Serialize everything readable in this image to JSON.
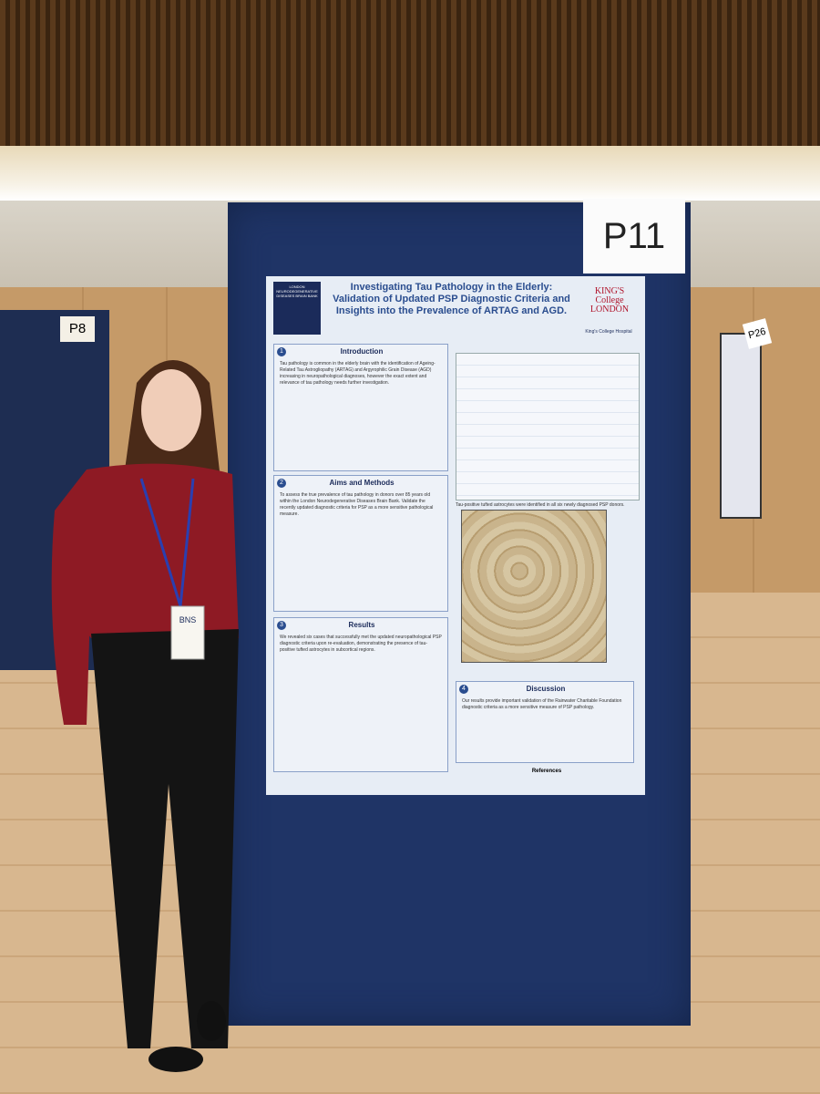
{
  "signs": {
    "board": "P11",
    "left_board": "P8",
    "right_board": "P26"
  },
  "badge": "BNS",
  "poster": {
    "title": "Investigating Tau Pathology in the Elderly: Validation of Updated PSP Diagnostic Criteria and Insights into the Prevalence of ARTAG and AGD.",
    "logo_left": "LONDON NEURODEGENERATIVE DISEASES BRAIN BANK",
    "logo_right": [
      "KING'S",
      "College",
      "LONDON"
    ],
    "hospital": "King's College Hospital",
    "sections": [
      {
        "number": "1",
        "heading": "Introduction",
        "text": "Tau pathology is common in the elderly brain with the identification of Ageing-Related Tau Astrogliopathy (ARTAG) and Argyrophilic Grain Disease (AGD) increasing in neuropathological diagnoses, however the exact extent and relevance of tau pathology needs further investigation."
      },
      {
        "number": "2",
        "heading": "Aims and Methods",
        "text": "To assess the true prevalence of tau pathology in donors over 85 years old within the London Neurodegenerative Diseases Brain Bank. Validate the recently updated diagnostic criteria for PSP as a more sensitive pathological measure."
      },
      {
        "number": "3",
        "heading": "Results",
        "text": "We revealed six cases that successfully met the updated neuropathological PSP diagnostic criteria upon re-evaluation, demonstrating the presence of tau-positive tufted astrocytes in subcortical regions."
      },
      {
        "number": "4",
        "heading": "Discussion",
        "text": "Our results provide important validation of the Rainwater Charitable Foundation diagnostic criteria as a more sensitive measure of PSP pathology."
      }
    ],
    "figure_caption": "Tau-positive tufted astrocytes were identified in all six newly diagnosed PSP donors.",
    "references": "References"
  }
}
